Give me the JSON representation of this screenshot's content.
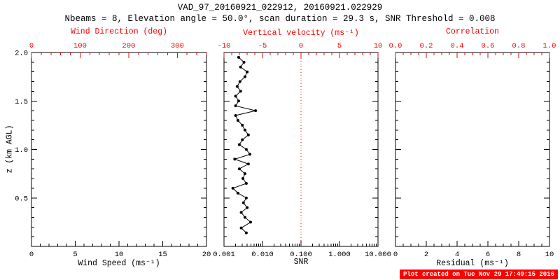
{
  "header": {
    "title": "VAD_97_20160921_022912, 20160921.022929",
    "subtitle": "Nbeams = 8, Elevation angle = 50.0°, scan duration = 29.3 s, SNR Threshold = 0.008"
  },
  "footer": {
    "text": "Plot created on Tue Nov 29 17:49:15 2016"
  },
  "colors": {
    "axis": "#000000",
    "secondary": "#ff0000",
    "background": "#ffffff",
    "footer_bg": "#ff0000",
    "footer_fg": "#ffffff"
  },
  "y_axis": {
    "label": "z (km AGL)",
    "lim": [
      0,
      2
    ],
    "ticks": [
      "0.5",
      "1.0",
      "1.5",
      "2.0"
    ],
    "tick_values": [
      0.5,
      1.0,
      1.5,
      2.0
    ],
    "minor_step": 0.1
  },
  "chart_data": [
    {
      "type": "scatter",
      "panel_name": "wind-speed-direction-panel",
      "xlabel": "Wind Speed (ms⁻¹)",
      "xlim": [
        0,
        20
      ],
      "xticks": [
        0,
        5,
        10,
        15,
        20
      ],
      "xtick_labels": [
        "0",
        "5",
        "10",
        "15",
        "20"
      ],
      "x_minor": 1,
      "top_axis": {
        "label": "Wind Direction (deg)",
        "lim": [
          0,
          360
        ],
        "tick_values": [
          0,
          100,
          200,
          300
        ],
        "tick_labels": [
          "0",
          "100",
          "200",
          "300"
        ],
        "minor_step": 20
      },
      "points": []
    },
    {
      "type": "line",
      "panel_name": "snr-vertical-velocity-panel",
      "xlabel": "SNR",
      "xscale": "log",
      "xlim": [
        0.001,
        10
      ],
      "xticks": [
        0.001,
        0.01,
        0.1,
        1,
        10
      ],
      "xtick_labels": [
        "0.001",
        "0.010",
        "0.100",
        "1.000",
        "10.000"
      ],
      "top_axis": {
        "label": "Vertical velocity (ms⁻¹)",
        "lim": [
          -10,
          10
        ],
        "tick_values": [
          -10,
          -5,
          0,
          5,
          10
        ],
        "tick_labels": [
          "-10",
          "-5",
          "0",
          "5",
          "10"
        ],
        "minor_step": 1
      },
      "ref_line": {
        "top_value": 0,
        "style": "dotted"
      },
      "points_format": [
        "z_km",
        "snr"
      ],
      "points": [
        [
          0.14,
          0.0038
        ],
        [
          0.19,
          0.0028
        ],
        [
          0.25,
          0.0049
        ],
        [
          0.3,
          0.0035
        ],
        [
          0.35,
          0.0028
        ],
        [
          0.4,
          0.004
        ],
        [
          0.45,
          0.0032
        ],
        [
          0.5,
          0.0038
        ],
        [
          0.55,
          0.0023
        ],
        [
          0.6,
          0.0017
        ],
        [
          0.65,
          0.0038
        ],
        [
          0.7,
          0.0031
        ],
        [
          0.75,
          0.0035
        ],
        [
          0.8,
          0.0025
        ],
        [
          0.85,
          0.0043
        ],
        [
          0.9,
          0.0019
        ],
        [
          0.95,
          0.0047
        ],
        [
          1.0,
          0.0038
        ],
        [
          1.05,
          0.0025
        ],
        [
          1.1,
          0.003
        ],
        [
          1.15,
          0.0043
        ],
        [
          1.2,
          0.0035
        ],
        [
          1.25,
          0.003
        ],
        [
          1.3,
          0.0023
        ],
        [
          1.35,
          0.002
        ],
        [
          1.4,
          0.0066
        ],
        [
          1.45,
          0.002
        ],
        [
          1.5,
          0.0024
        ],
        [
          1.55,
          0.002
        ],
        [
          1.6,
          0.0027
        ],
        [
          1.65,
          0.0022
        ],
        [
          1.7,
          0.0026
        ],
        [
          1.75,
          0.0035
        ],
        [
          1.8,
          0.004
        ],
        [
          1.85,
          0.0027
        ],
        [
          1.9,
          0.0033
        ],
        [
          1.95,
          0.0024
        ]
      ]
    },
    {
      "type": "scatter",
      "panel_name": "residual-correlation-panel",
      "xlabel": "Residual (ms⁻¹)",
      "xlim": [
        0,
        10
      ],
      "xticks": [
        0,
        2,
        4,
        6,
        8,
        10
      ],
      "xtick_labels": [
        "0",
        "2",
        "4",
        "6",
        "8",
        "10"
      ],
      "x_minor": 0.5,
      "top_axis": {
        "label": "Correlation",
        "lim": [
          0,
          1
        ],
        "tick_values": [
          0,
          0.2,
          0.4,
          0.6,
          0.8,
          1.0
        ],
        "tick_labels": [
          "0.0",
          "0.2",
          "0.4",
          "0.6",
          "0.8",
          "1.0"
        ],
        "minor_step": 0.05
      },
      "points": []
    }
  ]
}
